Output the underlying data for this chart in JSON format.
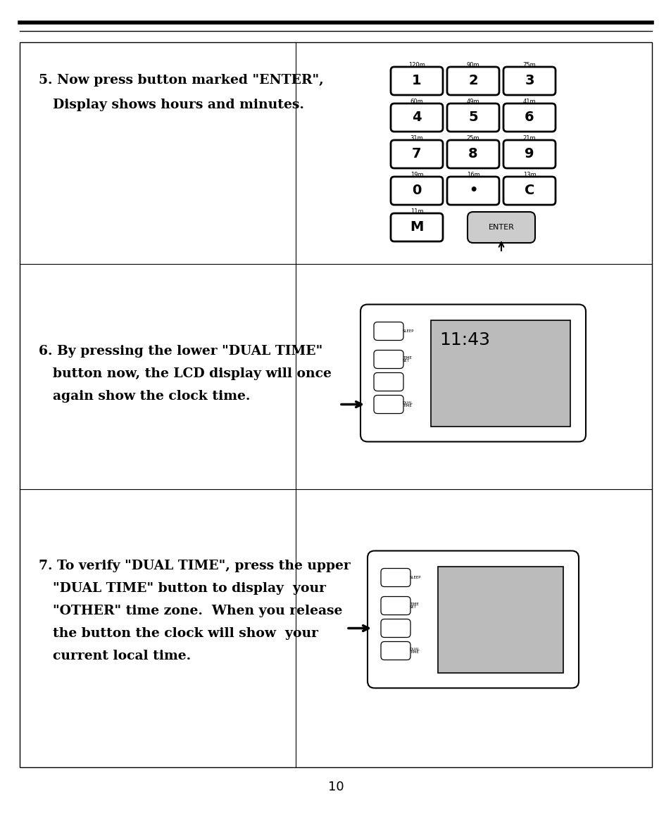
{
  "page_number": "10",
  "background_color": "#ffffff",
  "keypad_buttons": [
    {
      "label": "1",
      "sublabel": "120m",
      "col": 0,
      "row": 0
    },
    {
      "label": "2",
      "sublabel": "90m",
      "col": 1,
      "row": 0
    },
    {
      "label": "3",
      "sublabel": "75m",
      "col": 2,
      "row": 0
    },
    {
      "label": "4",
      "sublabel": "60m",
      "col": 0,
      "row": 1
    },
    {
      "label": "5",
      "sublabel": "49m",
      "col": 1,
      "row": 1
    },
    {
      "label": "6",
      "sublabel": "41m",
      "col": 2,
      "row": 1
    },
    {
      "label": "7",
      "sublabel": "31m",
      "col": 0,
      "row": 2
    },
    {
      "label": "8",
      "sublabel": "25m",
      "col": 1,
      "row": 2
    },
    {
      "label": "9",
      "sublabel": "21m",
      "col": 2,
      "row": 2
    },
    {
      "label": "0",
      "sublabel": "19m",
      "col": 0,
      "row": 3
    },
    {
      "label": "•",
      "sublabel": "16m",
      "col": 1,
      "row": 3
    },
    {
      "label": "C",
      "sublabel": "13m",
      "col": 2,
      "row": 3
    },
    {
      "label": "M",
      "sublabel": "11m",
      "col": 0,
      "row": 4
    }
  ]
}
